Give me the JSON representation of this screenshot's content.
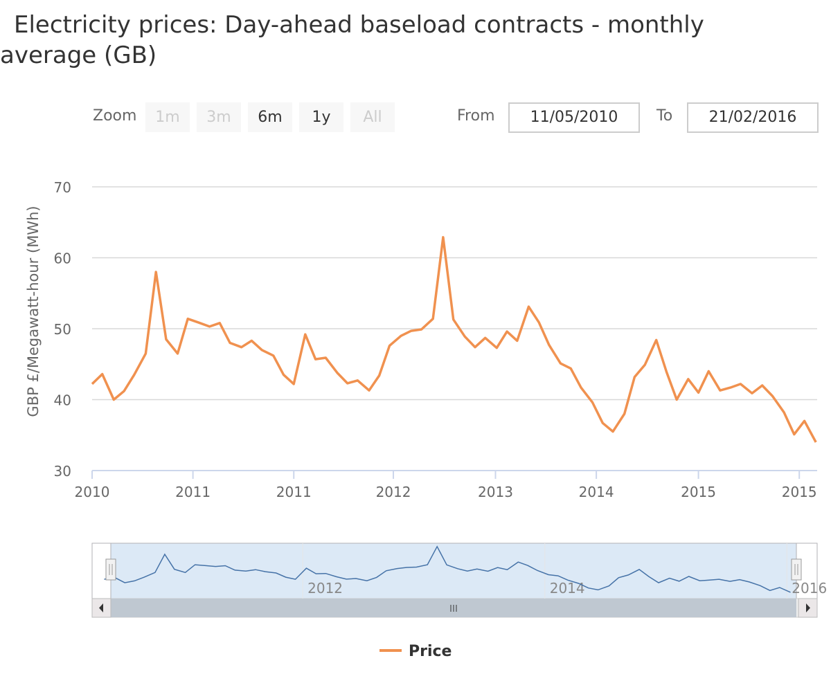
{
  "title": "Electricity prices: Day-ahead baseload contracts - monthly average (GB)",
  "range_selector": {
    "label": "Zoom",
    "buttons": [
      "1m",
      "3m",
      "6m",
      "1y",
      "All"
    ],
    "from_label": "From",
    "from": "11/05/2010",
    "to_label": "To",
    "to": "21/02/2016"
  },
  "chart_data": {
    "type": "line",
    "y_label": "GBP £/Megawatt-hour (MWh)",
    "x": [
      2010.36,
      2010.44,
      2010.53,
      2010.61,
      2010.69,
      2010.78,
      2010.86,
      2010.94,
      2011.03,
      2011.11,
      2011.19,
      2011.28,
      2011.36,
      2011.44,
      2011.53,
      2011.61,
      2011.69,
      2011.78,
      2011.86,
      2011.94,
      2012.03,
      2012.11,
      2012.19,
      2012.28,
      2012.36,
      2012.44,
      2012.53,
      2012.61,
      2012.69,
      2012.78,
      2012.86,
      2012.94,
      2013.03,
      2013.11,
      2013.19,
      2013.28,
      2013.36,
      2013.44,
      2013.53,
      2013.61,
      2013.69,
      2013.78,
      2013.86,
      2013.94,
      2014.03,
      2014.11,
      2014.19,
      2014.28,
      2014.36,
      2014.44,
      2014.53,
      2014.61,
      2014.69,
      2014.78,
      2014.86,
      2014.94,
      2015.03,
      2015.11,
      2015.19,
      2015.28,
      2015.36,
      2015.44,
      2015.53,
      2015.61,
      2015.69,
      2015.78,
      2015.86,
      2015.94,
      2016.03
    ],
    "series": [
      {
        "name": "Price",
        "color": "#f0914f",
        "values": [
          42.2,
          43.6,
          40.0,
          41.2,
          43.5,
          46.5,
          58.0,
          48.5,
          46.5,
          51.4,
          50.9,
          50.3,
          50.8,
          48.0,
          47.4,
          48.3,
          47.0,
          46.2,
          43.5,
          42.2,
          49.2,
          45.7,
          45.9,
          43.8,
          42.3,
          42.7,
          41.3,
          43.4,
          47.6,
          49.0,
          49.7,
          49.9,
          51.4,
          62.9,
          51.3,
          48.9,
          47.4,
          48.7,
          47.3,
          49.6,
          48.3,
          53.1,
          50.9,
          47.7,
          45.1,
          44.4,
          41.7,
          39.6,
          36.7,
          35.5,
          38.0,
          43.2,
          44.9,
          48.4,
          43.9,
          40.0,
          42.9,
          41.0,
          44.0,
          41.3,
          41.7,
          42.2,
          40.9,
          42.0,
          40.5,
          38.2,
          35.1,
          37.0,
          34.0
        ]
      }
    ],
    "xlim": [
      2010.36,
      2016.04
    ],
    "xticks": [
      {
        "value": 2010.36,
        "label": "2010"
      },
      {
        "value": 2011.15,
        "label": "2011"
      },
      {
        "value": 2011.94,
        "label": "2011"
      },
      {
        "value": 2012.72,
        "label": "2012"
      },
      {
        "value": 2013.52,
        "label": "2013"
      },
      {
        "value": 2014.31,
        "label": "2014"
      },
      {
        "value": 2015.11,
        "label": "2015"
      },
      {
        "value": 2015.9,
        "label": "2015"
      }
    ],
    "ylim": [
      30,
      70
    ],
    "yticks": [
      30,
      40,
      50,
      60,
      70
    ],
    "grid": true,
    "navigator": {
      "xlim": [
        2010.26,
        2016.25
      ],
      "ylim": [
        30,
        65
      ],
      "color": "#4572a7",
      "xticks": [
        {
          "value": 2012,
          "label": "2012"
        },
        {
          "value": 2014,
          "label": "2014"
        },
        {
          "value": 2016,
          "label": "2016"
        }
      ]
    }
  }
}
